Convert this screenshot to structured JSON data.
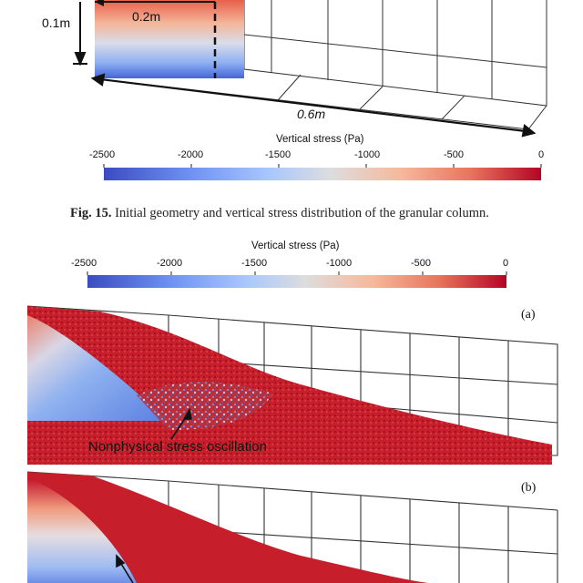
{
  "figure15": {
    "dim_height": "0.1m",
    "dim_width": "0.2m",
    "dim_length": "0.6m",
    "colorbar": {
      "title": "Vertical stress (Pa)",
      "ticks": [
        "-2500",
        "-2000",
        "-1500",
        "-1000",
        "-500",
        "0"
      ]
    },
    "caption": {
      "number": "Fig. 15.",
      "text": "Initial geometry and vertical stress distribution of the granular column."
    }
  },
  "figure16": {
    "colorbar": {
      "title": "Vertical stress (Pa)",
      "ticks": [
        "-2500",
        "-2000",
        "-1500",
        "-1000",
        "-500",
        "0"
      ]
    },
    "panel_a": {
      "letter": "(a)",
      "annotation": "Nonphysical stress oscillation"
    },
    "panel_b": {
      "letter": "(b)"
    }
  },
  "colors": {
    "stress_min": "#3b4cc0",
    "stress_mid": "#dddddd",
    "stress_max": "#b40426"
  }
}
